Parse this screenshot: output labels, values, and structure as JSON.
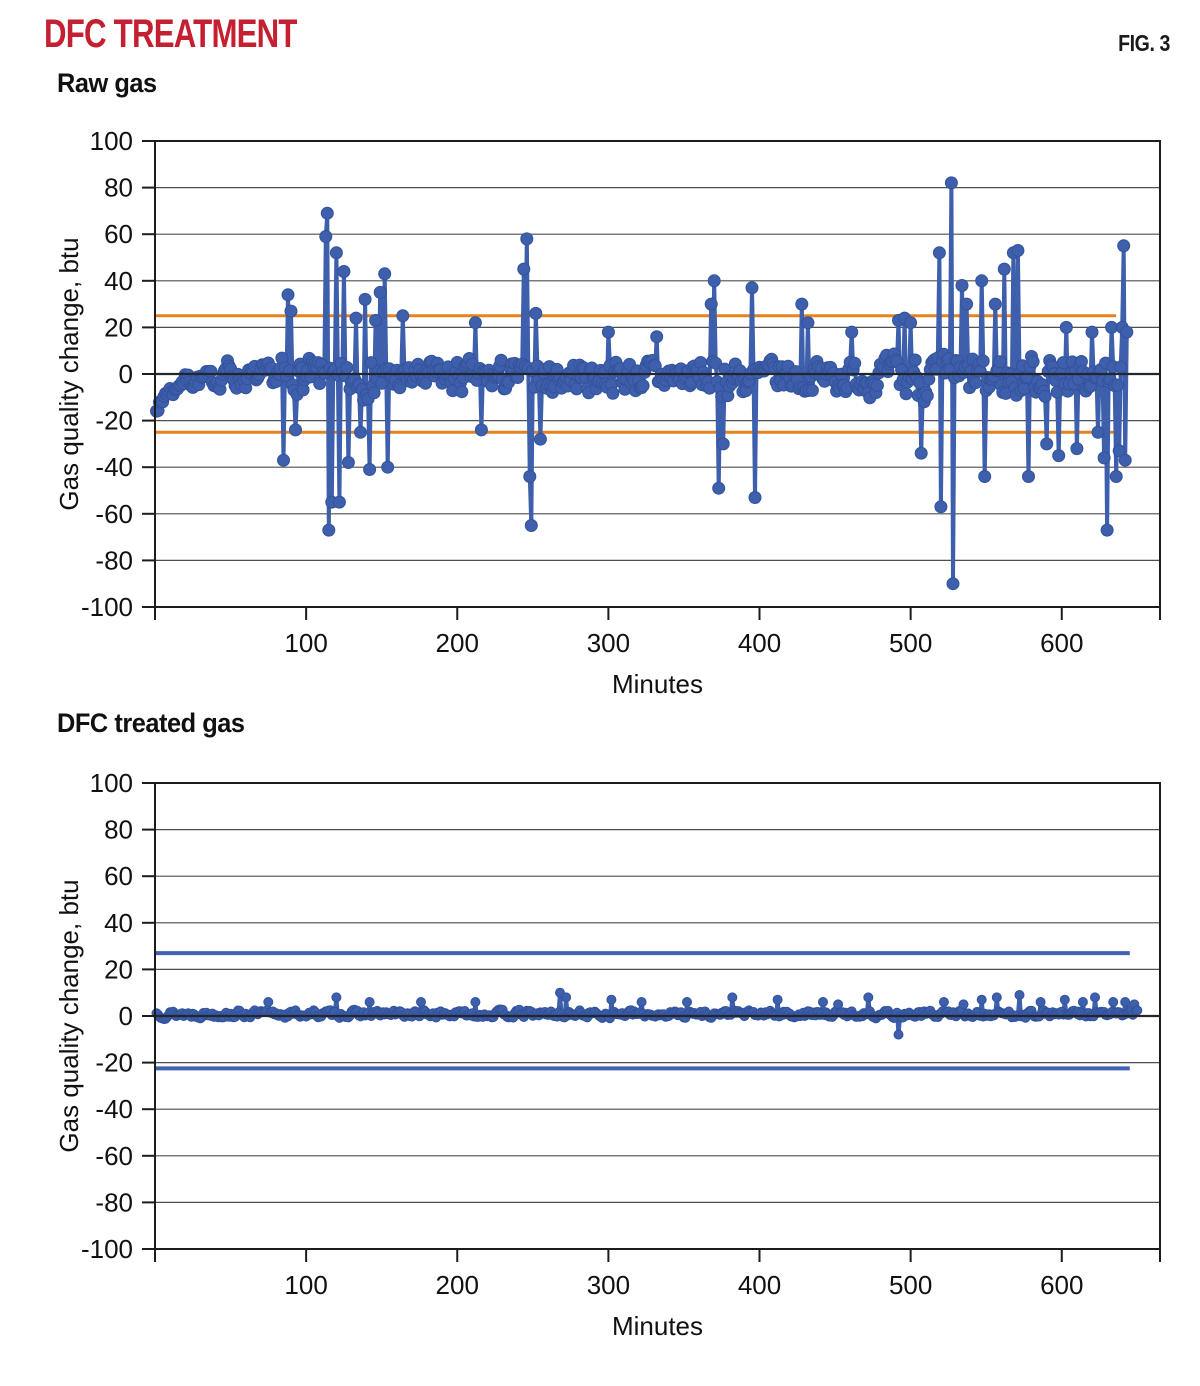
{
  "header": {
    "title": "DFC TREATMENT",
    "fig_label": "FIG. 3"
  },
  "colors": {
    "title_red": "#C42032",
    "series_blue": "#3D5FAC",
    "marker_stroke": "#33539B",
    "limit_orange": "#E8821D",
    "limit_blue": "#3E63B0",
    "gridline": "#4F4F4F",
    "axis": "#1C1C1C"
  },
  "chart_data": [
    {
      "type": "line",
      "title": "Raw gas",
      "xlabel": "Minutes",
      "ylabel": "Gas quality change, btu",
      "ylim": [
        -100,
        100
      ],
      "ytick_step": 20,
      "xticks": [
        100,
        200,
        300,
        400,
        500,
        600
      ],
      "x_axis_max": 665,
      "x_data_max": 643,
      "grid": true,
      "legend": "none",
      "seed": 7,
      "series_color": "#3D5FAC",
      "marker_stroke": "#33539B",
      "line_width": 4,
      "marker_radius": 6,
      "control_limits": {
        "upper": 25,
        "lower": -25,
        "color": "#E8821D",
        "width": 3,
        "end_minute": 636
      },
      "noise_segments": [
        {
          "from": 1,
          "to": 5,
          "min": -16,
          "max": -9
        },
        {
          "from": 6,
          "to": 14,
          "min": -11,
          "max": -3
        },
        {
          "from": 15,
          "to": 44,
          "min": -8,
          "max": 3
        },
        {
          "from": 45,
          "to": 48,
          "min": -2,
          "max": 9
        },
        {
          "from": 49,
          "to": 80,
          "min": -9,
          "max": 6
        },
        {
          "from": 81,
          "to": 160,
          "min": -15,
          "max": 11
        },
        {
          "from": 161,
          "to": 240,
          "min": -12,
          "max": 9
        },
        {
          "from": 241,
          "to": 262,
          "min": -14,
          "max": 10
        },
        {
          "from": 263,
          "to": 360,
          "min": -12,
          "max": 10
        },
        {
          "from": 361,
          "to": 404,
          "min": -14,
          "max": 11
        },
        {
          "from": 405,
          "to": 488,
          "min": -12,
          "max": 10
        },
        {
          "from": 489,
          "to": 582,
          "min": -16,
          "max": 13
        },
        {
          "from": 583,
          "to": 643,
          "min": -14,
          "max": 11
        }
      ],
      "spikes": [
        [
          85,
          -37
        ],
        [
          88,
          34
        ],
        [
          90,
          27
        ],
        [
          93,
          -24
        ],
        [
          113,
          59
        ],
        [
          114,
          69
        ],
        [
          115,
          -67
        ],
        [
          117,
          -55
        ],
        [
          120,
          52
        ],
        [
          122,
          -55
        ],
        [
          125,
          44
        ],
        [
          128,
          -38
        ],
        [
          133,
          24
        ],
        [
          136,
          -25
        ],
        [
          139,
          32
        ],
        [
          142,
          -41
        ],
        [
          146,
          23
        ],
        [
          149,
          35
        ],
        [
          152,
          43
        ],
        [
          154,
          -40
        ],
        [
          164,
          25
        ],
        [
          212,
          22
        ],
        [
          216,
          -24
        ],
        [
          244,
          45
        ],
        [
          246,
          58
        ],
        [
          248,
          -44
        ],
        [
          249,
          -65
        ],
        [
          252,
          26
        ],
        [
          255,
          -28
        ],
        [
          300,
          18
        ],
        [
          332,
          16
        ],
        [
          368,
          30
        ],
        [
          370,
          40
        ],
        [
          373,
          -49
        ],
        [
          376,
          -30
        ],
        [
          395,
          37
        ],
        [
          397,
          -53
        ],
        [
          428,
          30
        ],
        [
          432,
          22
        ],
        [
          461,
          18
        ],
        [
          492,
          23
        ],
        [
          496,
          24
        ],
        [
          500,
          22
        ],
        [
          507,
          -34
        ],
        [
          519,
          52
        ],
        [
          520,
          -57
        ],
        [
          527,
          82
        ],
        [
          528,
          -90
        ],
        [
          534,
          38
        ],
        [
          537,
          30
        ],
        [
          547,
          40
        ],
        [
          549,
          -44
        ],
        [
          556,
          30
        ],
        [
          562,
          45
        ],
        [
          568,
          52
        ],
        [
          571,
          53
        ],
        [
          578,
          -44
        ],
        [
          590,
          -30
        ],
        [
          598,
          -35
        ],
        [
          603,
          20
        ],
        [
          610,
          -32
        ],
        [
          620,
          18
        ],
        [
          624,
          -25
        ],
        [
          628,
          -36
        ],
        [
          630,
          -67
        ],
        [
          633,
          20
        ],
        [
          636,
          -44
        ],
        [
          638,
          -33
        ],
        [
          640,
          20
        ],
        [
          641,
          55
        ],
        [
          642,
          -37
        ],
        [
          643,
          18
        ]
      ]
    },
    {
      "type": "line",
      "title": "DFC treated gas",
      "xlabel": "Minutes",
      "ylabel": "Gas quality change, btu",
      "ylim": [
        -100,
        100
      ],
      "ytick_step": 20,
      "xticks": [
        100,
        200,
        300,
        400,
        500,
        600
      ],
      "x_axis_max": 665,
      "x_data_max": 650,
      "grid": true,
      "legend": "none",
      "seed": 13,
      "series_color": "#3D5FAC",
      "marker_stroke": "#33539B",
      "line_width": 4,
      "marker_radius": 4.5,
      "control_limits": {
        "upper": 27,
        "lower": -22.5,
        "color": "#3E63B0",
        "width": 4,
        "end_minute": 645
      },
      "noise_segments": [
        {
          "from": 1,
          "to": 650,
          "min": -1.5,
          "max": 3.2
        }
      ],
      "spikes": [
        [
          75,
          6
        ],
        [
          120,
          8
        ],
        [
          142,
          6
        ],
        [
          176,
          6
        ],
        [
          212,
          6
        ],
        [
          268,
          10
        ],
        [
          272,
          8
        ],
        [
          302,
          7
        ],
        [
          322,
          6
        ],
        [
          352,
          6
        ],
        [
          382,
          8
        ],
        [
          412,
          7
        ],
        [
          442,
          6
        ],
        [
          452,
          5
        ],
        [
          472,
          8
        ],
        [
          492,
          -8
        ],
        [
          522,
          6
        ],
        [
          535,
          5
        ],
        [
          547,
          7
        ],
        [
          557,
          8
        ],
        [
          572,
          9
        ],
        [
          586,
          6
        ],
        [
          602,
          7
        ],
        [
          614,
          6
        ],
        [
          622,
          8
        ],
        [
          634,
          6
        ],
        [
          642,
          6
        ],
        [
          648,
          5
        ]
      ]
    }
  ]
}
